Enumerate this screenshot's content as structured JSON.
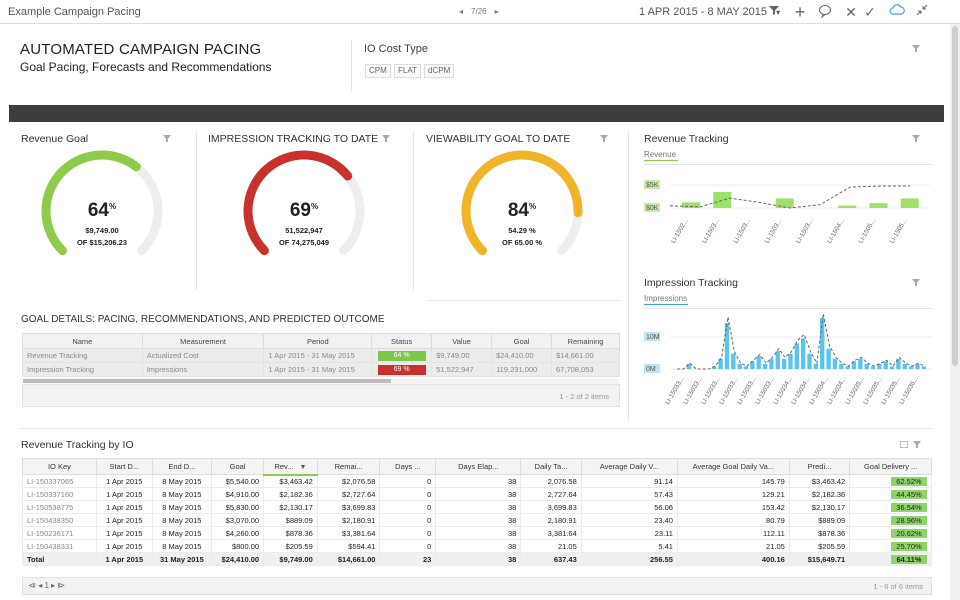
{
  "topbar": {
    "title": "Example Campaign Pacing",
    "page": "7/26",
    "date_range": "1 APR 2015 - 8 MAY 2015",
    "icons": [
      "filter-icon",
      "plus-icon",
      "comment-icon",
      "close-icon",
      "check-icon",
      "cloud-icon",
      "collapse-icon"
    ]
  },
  "header": {
    "title": "AUTOMATED CAMPAIGN PACING",
    "subtitle": "Goal Pacing, Forecasts and Recommendations",
    "io_cost_title": "IO Cost Type",
    "io_cost_types": [
      "CPM",
      "FLAT",
      "dCPM"
    ]
  },
  "gauges": [
    {
      "title": "Revenue Goal",
      "pct_value": "64",
      "pct_sign": "%",
      "line1": "$9,749.00",
      "line2": "OF $15,206.23",
      "fill": 0.64,
      "color": "#8dcc4a"
    },
    {
      "title": "IMPRESSION TRACKING TO DATE",
      "pct_value": "69",
      "pct_sign": "%",
      "line1": "51,522,947",
      "line2": "OF 74,275,049",
      "fill": 0.69,
      "color": "#c9312c"
    },
    {
      "title": "VIEWABILITY GOAL TO DATE",
      "pct_value": "84",
      "pct_sign": "%",
      "line1": "54.29 %",
      "line2": "OF 65.00 %",
      "fill": 0.84,
      "color": "#f0b429"
    }
  ],
  "revenue_tracking": {
    "title": "Revenue Tracking",
    "legend": "Revenue",
    "y_labels": [
      "$5K",
      "$0K"
    ],
    "x_labels": [
      "LI-1502...",
      "LI-1503...",
      "LI-1503...",
      "LI-1503...",
      "LI-1503...",
      "LI-1504...",
      "LI-1505...",
      "LI-1505..."
    ],
    "bars": [
      0.35,
      1.0,
      0.0,
      0.6,
      0.0,
      0.15,
      0.3,
      0.6
    ],
    "line": [
      0.1,
      0.05,
      0.45,
      0.25,
      0.0,
      0.15,
      0.95,
      1.0,
      1.0
    ]
  },
  "impression_tracking": {
    "title": "Impression Tracking",
    "legend": "Impressions",
    "y_labels": [
      "10M",
      "0M"
    ],
    "x_labels": [
      "LI-15033...",
      "LI-15033...",
      "LI-15033...",
      "LI-15033...",
      "LI-15033...",
      "LI-15033...",
      "LI-15034...",
      "LI-15034...",
      "LI-15034...",
      "LI-15034...",
      "LI-15035...",
      "LI-15035...",
      "LI-15035...",
      "LI-15036..."
    ]
  },
  "goal_details": {
    "title": "GOAL DETAILS: PACING, RECOMMENDATIONS, AND PREDICTED OUTCOME",
    "columns": [
      "Name",
      "Measurement",
      "Period",
      "Status",
      "Value",
      "Goal",
      "Remaining"
    ],
    "rows": [
      {
        "name": "Revenue Tracking",
        "measurement": "Actualized Cost",
        "period": "1 Apr 2015 - 31 May 2015",
        "status": "64 %",
        "status_color": "#7cc84a",
        "value": "$9,749.00",
        "goal": "$24,410.00",
        "remaining": "$14,661.00"
      },
      {
        "name": "Impression Tracking",
        "measurement": "Impressions",
        "period": "1 Apr 2015 - 31 May 2015",
        "status": "69 %",
        "status_color": "#c9312c",
        "value": "51,522,947",
        "goal": "119,231,000",
        "remaining": "67,708,053"
      }
    ],
    "footer": "1 - 2 of 2 items"
  },
  "io_table": {
    "title": "Revenue Tracking by IO",
    "columns": [
      "IO Key",
      "Start D...",
      "End D...",
      "Goal",
      "Rev...",
      "Remai...",
      "Days ...",
      "Days Elap...",
      "Daily Ta...",
      "Average Daily V...",
      "Average Goal Daily Va...",
      "Predi...",
      "Goal Delivery ..."
    ],
    "rows": [
      [
        "LI-150337065",
        "1 Apr 2015",
        "8 May 2015",
        "$5,540.00",
        "$3,463.42",
        "$2,076.58",
        "0",
        "38",
        "2,076.58",
        "91.14",
        "145.79",
        "$3,463.42",
        "62.52%"
      ],
      [
        "LI-150337160",
        "1 Apr 2015",
        "8 May 2015",
        "$4,910.00",
        "$2,182.36",
        "$2,727.64",
        "0",
        "38",
        "2,727.64",
        "57.43",
        "129.21",
        "$2,182.36",
        "44.45%"
      ],
      [
        "LI-150538775",
        "1 Apr 2015",
        "8 May 2015",
        "$5,830.00",
        "$2,130.17",
        "$3,699.83",
        "0",
        "38",
        "3,699.83",
        "56.06",
        "153.42",
        "$2,130.17",
        "36.54%"
      ],
      [
        "LI-150438350",
        "1 Apr 2015",
        "8 May 2015",
        "$3,070.00",
        "$889.09",
        "$2,180.91",
        "0",
        "38",
        "2,180.91",
        "23.40",
        "80.79",
        "$889.09",
        "28.96%"
      ],
      [
        "LI-150236171",
        "1 Apr 2015",
        "8 May 2015",
        "$4,260.00",
        "$878.36",
        "$3,381.64",
        "0",
        "38",
        "3,381.64",
        "23.11",
        "112.11",
        "$878.36",
        "20.62%"
      ],
      [
        "LI-150438331",
        "1 Apr 2015",
        "8 May 2015",
        "$800.00",
        "$205.59",
        "$594.41",
        "0",
        "38",
        "21.05",
        "5.41",
        "21.05",
        "$205.59",
        "25.70%"
      ]
    ],
    "total": [
      "Total",
      "1 Apr 2015",
      "31 May 2015",
      "$24,410.00",
      "$9,749.00",
      "$14,661.00",
      "23",
      "38",
      "637.43",
      "256.55",
      "400.16",
      "$15,649.71",
      "64.11%"
    ],
    "footer": "1 - 6 of 6 items",
    "pager": "⧏ ◂ 1 ▸ ⧐"
  }
}
